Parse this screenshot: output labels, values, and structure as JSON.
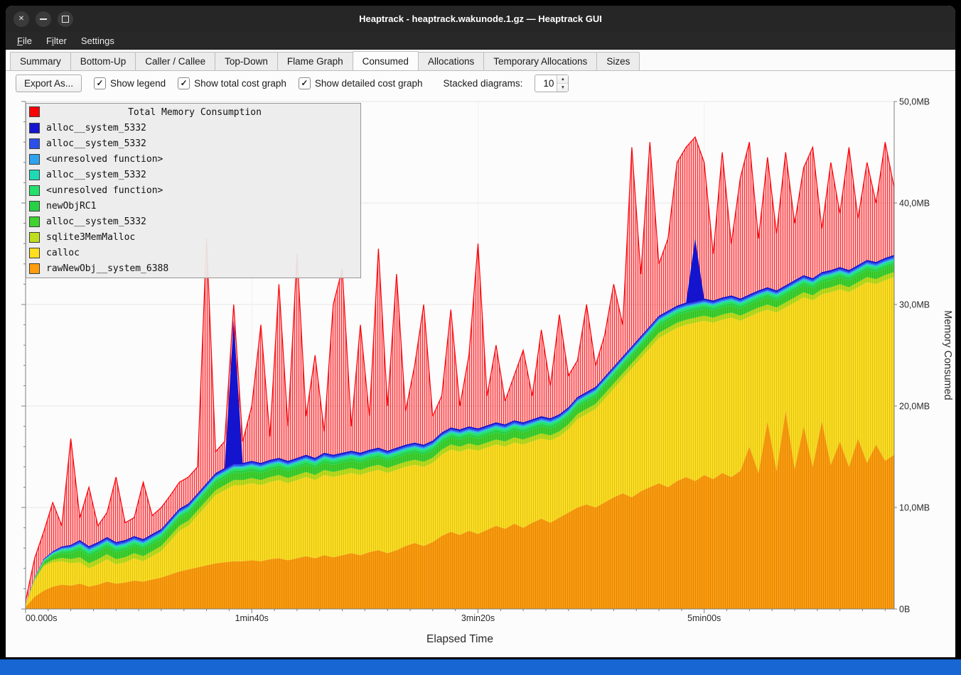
{
  "window": {
    "title": "Heaptrack - heaptrack.wakunode.1.gz — Heaptrack GUI",
    "controls": [
      "close",
      "minimize",
      "maximize"
    ]
  },
  "menu": {
    "items": [
      {
        "label": "File",
        "mnemonic": 0
      },
      {
        "label": "Filter",
        "mnemonic": 1
      },
      {
        "label": "Settings",
        "mnemonic": 6
      }
    ]
  },
  "tabs": {
    "active": "Consumed",
    "items": [
      "Summary",
      "Bottom-Up",
      "Caller / Callee",
      "Top-Down",
      "Flame Graph",
      "Consumed",
      "Allocations",
      "Temporary Allocations",
      "Sizes"
    ]
  },
  "toolbar": {
    "export_label": "Export As...",
    "checkboxes": [
      {
        "label": "Show legend",
        "checked": true
      },
      {
        "label": "Show total cost graph",
        "checked": true
      },
      {
        "label": "Show detailed cost graph",
        "checked": true
      }
    ],
    "stacked_label": "Stacked diagrams:",
    "stacked_value": "10"
  },
  "chart_data": {
    "type": "area",
    "title": "Total Memory Consumption",
    "xlabel": "Elapsed Time",
    "ylabel": "Memory Consumed",
    "ylim": [
      0,
      50
    ],
    "y_tick_labels": [
      "0B",
      "10,0MB",
      "20,0MB",
      "30,0MB",
      "40,0MB",
      "50,0MB"
    ],
    "x_ticks": [
      {
        "t": 0,
        "label": "00.000s"
      },
      {
        "t": 100,
        "label": "1min40s"
      },
      {
        "t": 200,
        "label": "3min20s"
      },
      {
        "t": 300,
        "label": "5min00s"
      }
    ],
    "x_step": 4,
    "thin_ramp_s": 24,
    "grid": true,
    "legend_position": "top-left",
    "series": [
      {
        "name": "rawNewObj__system_6388",
        "color": "#ff9d0e",
        "texture": true,
        "top": [
          0.2,
          1.2,
          1.8,
          2.2,
          2.4,
          2.3,
          2.5,
          2.2,
          2.4,
          2.7,
          2.5,
          2.6,
          2.8,
          2.7,
          2.9,
          3.1,
          3.4,
          3.7,
          3.9,
          4.1,
          4.3,
          4.5,
          4.6,
          4.7,
          4.7,
          4.8,
          4.7,
          4.9,
          5.0,
          4.8,
          5.0,
          5.2,
          5.0,
          5.3,
          5.1,
          5.3,
          5.5,
          5.3,
          5.6,
          5.8,
          5.5,
          5.8,
          6.2,
          6.5,
          6.2,
          6.6,
          7.2,
          7.6,
          7.3,
          7.7,
          7.4,
          7.8,
          8.2,
          7.9,
          8.4,
          8.0,
          8.5,
          8.9,
          8.5,
          9.0,
          9.5,
          10.0,
          10.3,
          10.0,
          10.5,
          11.0,
          11.4,
          11.0,
          11.6,
          12.0,
          12.4,
          12.0,
          12.6,
          13.0,
          12.6,
          13.2,
          12.8,
          13.4,
          13.0,
          13.6,
          16.0,
          13.4,
          18.5,
          13.6,
          19.5,
          13.8,
          18.0,
          14.0,
          18.5,
          14.2,
          16.5,
          14.0,
          16.8,
          14.4,
          16.2,
          14.6,
          15.2
        ]
      },
      {
        "name": "calloc",
        "color": "#ffdf20",
        "texture": true,
        "top": [
          0.4,
          2.8,
          4.2,
          4.6,
          4.7,
          4.5,
          4.6,
          4.0,
          4.4,
          4.9,
          4.4,
          4.6,
          5.0,
          4.7,
          5.2,
          5.7,
          6.7,
          7.7,
          8.2,
          9.2,
          10.2,
          11.2,
          11.7,
          12.2,
          12.2,
          12.4,
          12.2,
          12.5,
          12.7,
          12.4,
          12.7,
          13.0,
          12.7,
          13.2,
          13.0,
          13.2,
          13.4,
          13.2,
          13.5,
          13.7,
          13.4,
          13.7,
          14.0,
          14.2,
          14.0,
          14.4,
          15.2,
          15.7,
          15.5,
          15.8,
          15.6,
          15.9,
          16.2,
          16.0,
          16.4,
          16.2,
          16.5,
          16.8,
          16.6,
          17.0,
          17.7,
          18.7,
          19.2,
          19.7,
          20.7,
          21.7,
          22.7,
          23.7,
          24.7,
          25.7,
          26.7,
          27.2,
          27.7,
          28.0,
          28.2,
          28.4,
          28.2,
          28.5,
          28.7,
          28.4,
          28.8,
          29.2,
          29.5,
          29.2,
          29.7,
          30.2,
          30.7,
          30.4,
          31.0,
          31.2,
          31.5,
          31.2,
          31.7,
          32.2,
          32.0,
          32.4,
          32.7
        ]
      },
      {
        "name": "sqlite3MemMalloc",
        "color": "#bddf1d",
        "texture": true,
        "thickness": 0.5
      },
      {
        "name": "alloc__system_5332",
        "color": "#3ed32f",
        "texture": true,
        "thickness": 0.7
      },
      {
        "name": "newObjRC1",
        "color": "#27d145",
        "thickness": 0.25
      },
      {
        "name": "<unresolved function>",
        "color": "#24e06c",
        "thickness": 0.2
      },
      {
        "name": "alloc__system_5332",
        "color": "#1fd9b5",
        "thickness": 0.12
      },
      {
        "name": "<unresolved function>",
        "color": "#2fa2ef",
        "thickness": 0.12
      },
      {
        "name": "alloc__system_5332",
        "color": "#2b50ea",
        "thickness": 0.15
      },
      {
        "name": "alloc__system_5332",
        "color": "#1414cf",
        "thickness": 0.15,
        "spikes": {
          "23": 28.5,
          "74": 36.5
        }
      },
      {
        "name": "Total Memory Consumption",
        "color": "#fb0006",
        "style": "total",
        "top": [
          0.8,
          5.0,
          7.6,
          10.5,
          8.2,
          16.8,
          9.0,
          12.0,
          8.2,
          9.5,
          13.0,
          8.5,
          9.0,
          12.5,
          9.2,
          10.0,
          11.2,
          12.5,
          13.0,
          14.0,
          36.5,
          15.5,
          16.5,
          30.0,
          16.5,
          20.0,
          28.0,
          17.0,
          32.0,
          18.0,
          35.0,
          19.0,
          25.0,
          17.5,
          30.0,
          33.5,
          18.0,
          28.0,
          19.0,
          35.5,
          20.0,
          33.0,
          19.5,
          24.0,
          30.0,
          19.0,
          21.0,
          29.5,
          20.0,
          25.0,
          36.0,
          21.0,
          26.0,
          20.5,
          23.0,
          25.5,
          21.0,
          27.5,
          22.0,
          29.0,
          23.0,
          24.5,
          30.0,
          24.0,
          27.0,
          32.0,
          28.0,
          45.5,
          33.0,
          46.0,
          34.0,
          36.5,
          44.0,
          45.5,
          46.5,
          44.0,
          35.0,
          45.0,
          36.0,
          42.5,
          46.0,
          36.5,
          44.5,
          37.0,
          45.0,
          38.0,
          43.5,
          45.5,
          37.5,
          44.0,
          39.0,
          45.5,
          38.5,
          44.0,
          40.0,
          46.0,
          41.5
        ]
      }
    ]
  },
  "colors": {
    "titlebar": "#262626",
    "accent_strip": "#1766d3",
    "axis": "#808080",
    "grid": "#e6e6e6"
  }
}
